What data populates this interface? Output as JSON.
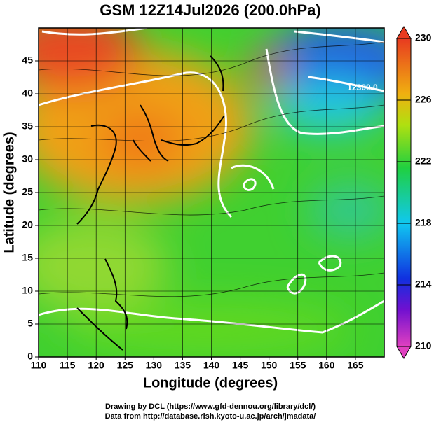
{
  "title": "GSM 12Z14Jul2026 (200.0hPa)",
  "map": {
    "xlabel": "Longitude (degrees)",
    "ylabel": "Latitude  (degrees)",
    "xlim": [
      110,
      170
    ],
    "xticks": [
      110,
      115,
      120,
      125,
      130,
      135,
      140,
      145,
      150,
      155,
      160,
      165
    ],
    "ylim": [
      0,
      50
    ],
    "yticks": [
      0,
      5,
      10,
      15,
      20,
      25,
      30,
      35,
      40,
      45
    ],
    "contour_label": "12300.0"
  },
  "colorbar": {
    "lim": [
      210,
      230
    ],
    "ticks": [
      210,
      214,
      218,
      222,
      226,
      230
    ]
  },
  "credits": [
    "Drawing by DCL (https://www.gfd-dennou.org/library/dcl/)",
    "Data from http://database.rish.kyoto-u.ac.jp/arch/jmadata/"
  ]
}
